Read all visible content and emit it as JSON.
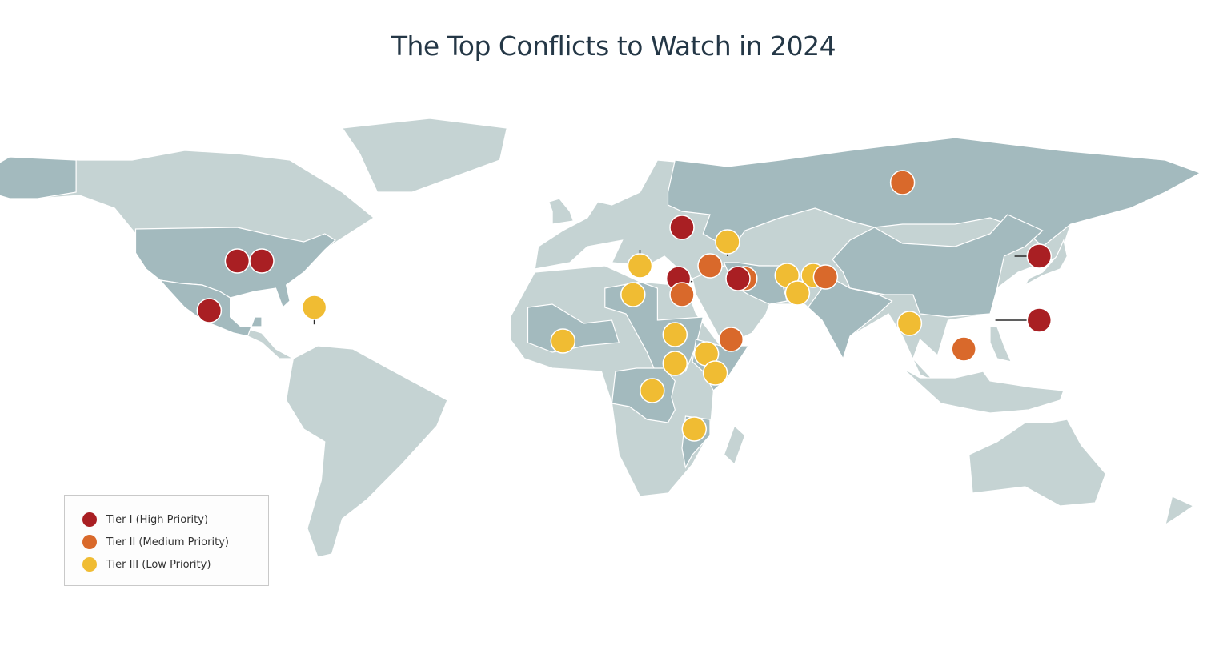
{
  "title": "The Top Conflicts to Watch in 2024",
  "colors": {
    "tier1": "#a91f23",
    "tier2": "#d9692b",
    "tier3": "#f0bc33",
    "land": "#c5d3d3",
    "land_highlight": "#a3babe"
  },
  "legend": {
    "items": [
      {
        "label": "Tier I (High Priority)",
        "tier": "tier1"
      },
      {
        "label": "Tier II (Medium Priority)",
        "tier": "tier2"
      },
      {
        "label": "Tier III (Low Priority)",
        "tier": "tier3"
      }
    ]
  },
  "markers": [
    {
      "id": "us-1",
      "tier": "tier1",
      "lon": -95,
      "lat": 38.5
    },
    {
      "id": "us-2",
      "tier": "tier1",
      "lon": -88,
      "lat": 38.5
    },
    {
      "id": "mexico",
      "tier": "tier1",
      "lon": -103,
      "lat": 23
    },
    {
      "id": "haiti",
      "tier": "tier3",
      "lon": -73,
      "lat": 24,
      "leader": [
        -73,
        18.7
      ]
    },
    {
      "id": "russia",
      "tier": "tier2",
      "lon": 95,
      "lat": 63
    },
    {
      "id": "ukraine",
      "tier": "tier1",
      "lon": 32,
      "lat": 49
    },
    {
      "id": "armenia-azerbaijan",
      "tier": "tier3",
      "lon": 45,
      "lat": 44.5,
      "leader": [
        45,
        40
      ]
    },
    {
      "id": "kosovo-serbia",
      "tier": "tier3",
      "lon": 20,
      "lat": 37,
      "leader": [
        20,
        42
      ]
    },
    {
      "id": "libya",
      "tier": "tier3",
      "lon": 18,
      "lat": 28
    },
    {
      "id": "israel-palestine",
      "tier": "tier1",
      "lon": 31,
      "lat": 33,
      "leader": [
        35,
        32
      ]
    },
    {
      "id": "egypt",
      "tier": "tier2",
      "lon": 32,
      "lat": 28
    },
    {
      "id": "syria-turkey",
      "tier": "tier2",
      "lon": 40,
      "lat": 37
    },
    {
      "id": "iraq",
      "tier": "tier2",
      "lon": 50,
      "lat": 33
    },
    {
      "id": "iran",
      "tier": "tier1",
      "lon": 48,
      "lat": 33
    },
    {
      "id": "afghanistan",
      "tier": "tier3",
      "lon": 62,
      "lat": 34
    },
    {
      "id": "pakistan-1",
      "tier": "tier3",
      "lon": 69.5,
      "lat": 34
    },
    {
      "id": "pakistan-2",
      "tier": "tier3",
      "lon": 65,
      "lat": 28.5
    },
    {
      "id": "india-pakistan",
      "tier": "tier2",
      "lon": 73,
      "lat": 33.5
    },
    {
      "id": "myanmar",
      "tier": "tier3",
      "lon": 97,
      "lat": 19
    },
    {
      "id": "north-korea",
      "tier": "tier1",
      "lon": 134,
      "lat": 40,
      "leader": [
        127,
        40
      ]
    },
    {
      "id": "taiwan",
      "tier": "tier1",
      "lon": 134,
      "lat": 20,
      "leader": [
        121.5,
        20
      ]
    },
    {
      "id": "south-china-sea",
      "tier": "tier2",
      "lon": 112.5,
      "lat": 11
    },
    {
      "id": "yemen",
      "tier": "tier2",
      "lon": 46,
      "lat": 14
    },
    {
      "id": "sahel",
      "tier": "tier3",
      "lon": -2,
      "lat": 13.5
    },
    {
      "id": "sudan",
      "tier": "tier3",
      "lon": 30,
      "lat": 15.5
    },
    {
      "id": "ethiopia",
      "tier": "tier3",
      "lon": 39,
      "lat": 9.5
    },
    {
      "id": "south-sudan",
      "tier": "tier3",
      "lon": 30,
      "lat": 6.5
    },
    {
      "id": "somalia",
      "tier": "tier3",
      "lon": 41.5,
      "lat": 3.5
    },
    {
      "id": "drc",
      "tier": "tier3",
      "lon": 23.5,
      "lat": -2
    },
    {
      "id": "mozambique",
      "tier": "tier3",
      "lon": 35.5,
      "lat": -14
    }
  ]
}
